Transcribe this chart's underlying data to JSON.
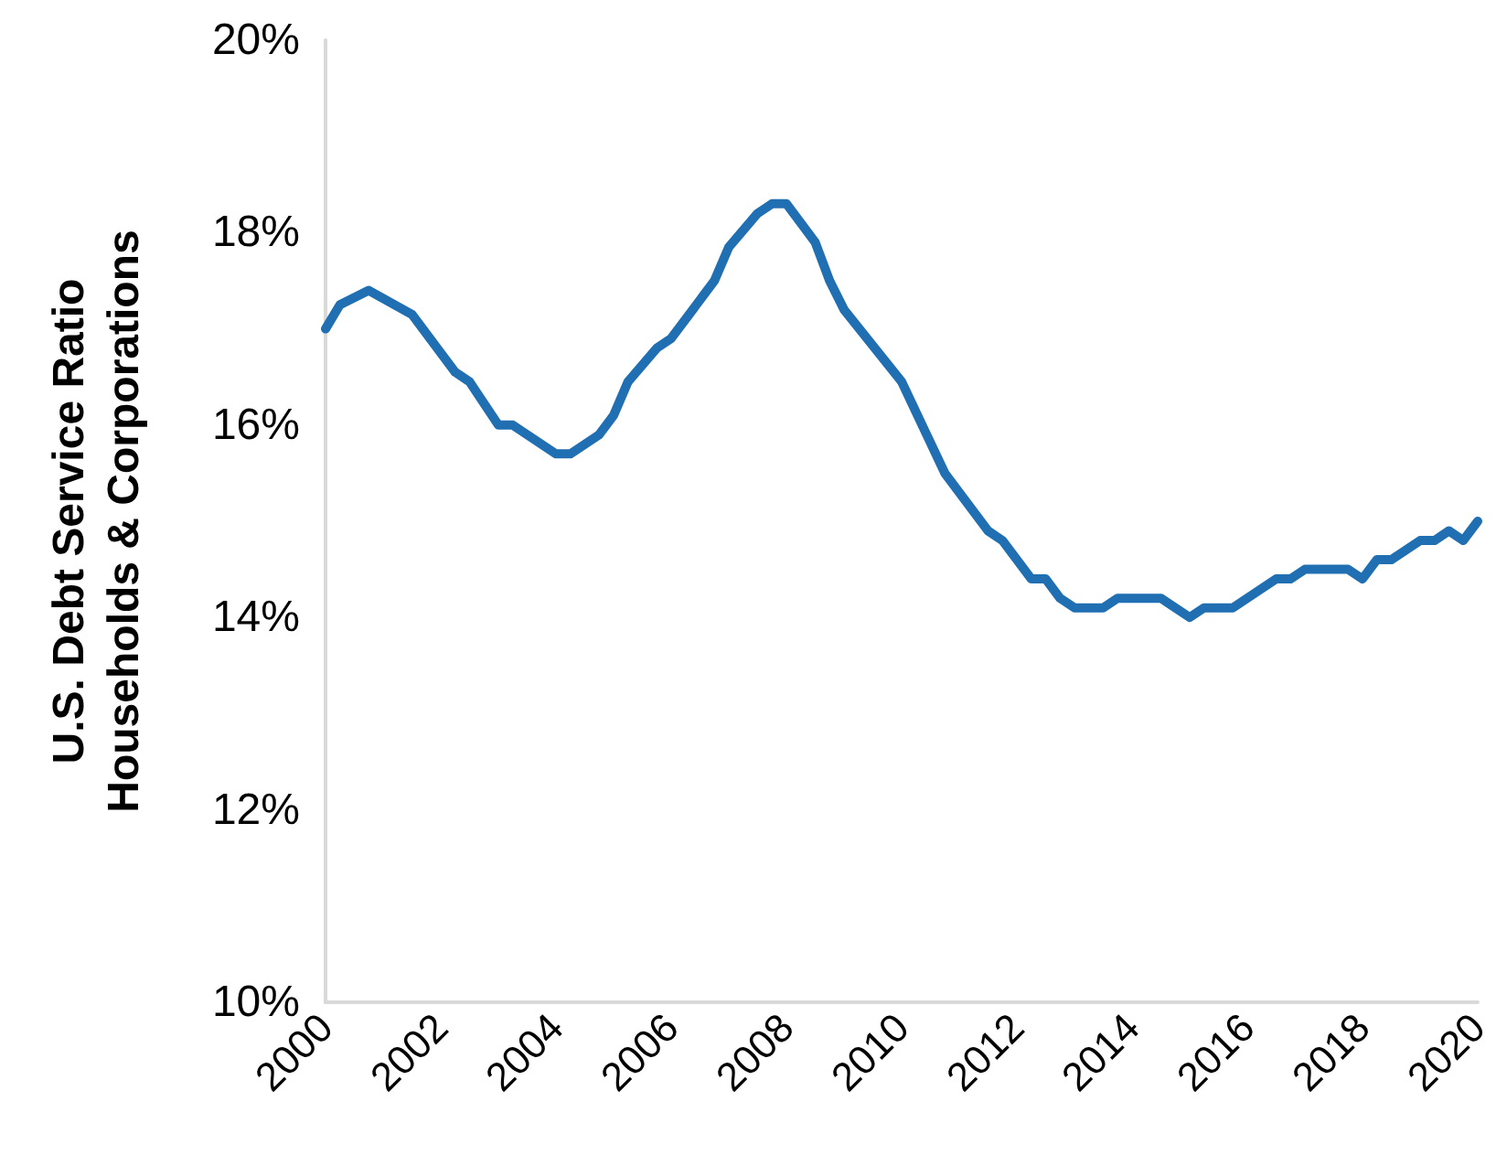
{
  "chart_data": {
    "type": "line",
    "ylabel": "U.S. Debt Service Ratio\nHouseholds & Corporations",
    "x": [
      2000,
      2000.25,
      2000.75,
      2001.5,
      2002.25,
      2002.5,
      2003,
      2003.25,
      2004,
      2004.25,
      2004.75,
      2005,
      2005.25,
      2005.75,
      2006,
      2006.75,
      2007,
      2007.5,
      2007.75,
      2008,
      2008.5,
      2008.75,
      2009,
      2010,
      2010.75,
      2011.5,
      2011.75,
      2012.25,
      2012.5,
      2012.75,
      2013,
      2013.5,
      2013.75,
      2014.5,
      2015,
      2015.25,
      2015.75,
      2016.5,
      2016.75,
      2017,
      2017.75,
      2018,
      2018.25,
      2018.5,
      2019,
      2019.25,
      2019.5,
      2019.75,
      2020
    ],
    "series": [
      {
        "color": "#1f6fb2",
        "values": [
          17.0,
          17.25,
          17.4,
          17.15,
          16.55,
          16.45,
          16.0,
          16.0,
          15.7,
          15.7,
          15.9,
          16.1,
          16.45,
          16.8,
          16.9,
          17.5,
          17.85,
          18.2,
          18.3,
          18.3,
          17.9,
          17.5,
          17.2,
          16.45,
          15.5,
          14.9,
          14.8,
          14.4,
          14.4,
          14.2,
          14.1,
          14.1,
          14.2,
          14.2,
          14.0,
          14.1,
          14.1,
          14.4,
          14.4,
          14.5,
          14.5,
          14.4,
          14.6,
          14.6,
          14.8,
          14.8,
          14.9,
          14.8,
          15.0
        ]
      }
    ],
    "xlim": [
      2000,
      2020
    ],
    "xticks": [
      2000,
      2002,
      2004,
      2006,
      2008,
      2010,
      2012,
      2014,
      2016,
      2018,
      2020
    ],
    "ylim": [
      10,
      20
    ],
    "yticks": [
      {
        "value": 10,
        "label": "10%"
      },
      {
        "value": 12,
        "label": "12%"
      },
      {
        "value": 14,
        "label": "14%"
      },
      {
        "value": 16,
        "label": "16%"
      },
      {
        "value": 18,
        "label": "18%"
      },
      {
        "value": 20,
        "label": "20%"
      }
    ],
    "grid": false,
    "marker": "none",
    "line_style": "solid"
  }
}
